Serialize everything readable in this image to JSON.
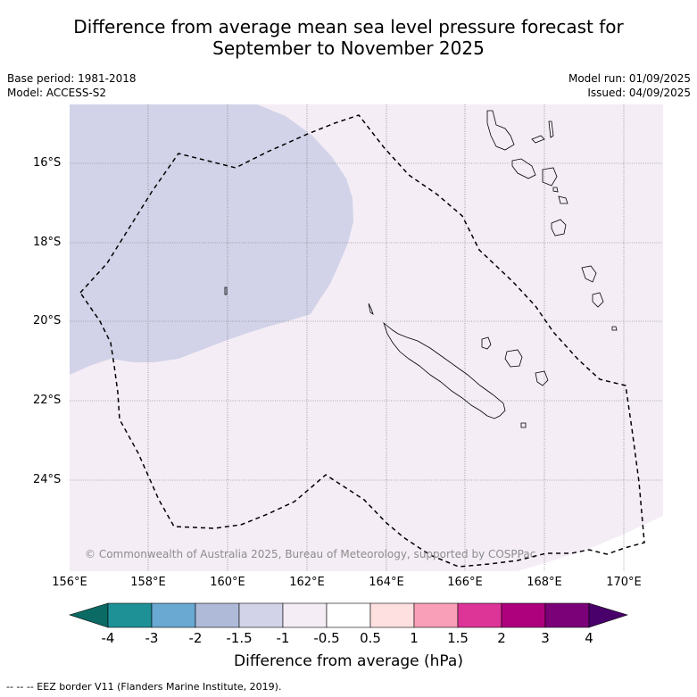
{
  "title_line1": "Difference from average mean sea level pressure forecast for",
  "title_line2": "September to November 2025",
  "meta": {
    "base_period": "Base period: 1981-2018",
    "model": "Model: ACCESS-S2",
    "model_run": "Model run: 01/09/2025",
    "issued": "Issued: 04/09/2025"
  },
  "lat_labels": [
    "16°S",
    "18°S",
    "20°S",
    "22°S",
    "24°S"
  ],
  "lon_labels": [
    "156°E",
    "158°E",
    "160°E",
    "162°E",
    "164°E",
    "166°E",
    "168°E",
    "170°E"
  ],
  "copyright": "© Commonwealth of Australia 2025, Bureau of Meteorology, supported by COSPPac",
  "colorbar": {
    "ticks": [
      "-4",
      "-3",
      "-2",
      "-1.5",
      "-1",
      "-0.5",
      "0.5",
      "1",
      "1.5",
      "2",
      "3",
      "4"
    ],
    "colors": {
      "below_-4": "#0b6b64",
      "-4_-3": "#1e9197",
      "-3_-2": "#69a9d2",
      "-2_-1.5": "#afbad8",
      "-1.5_-1": "#d2d3e8",
      "-1_-0.5": "#f4edf6",
      "-0.5_0.5": "#ffffff",
      "0.5_1": "#fde0df",
      "1_1.5": "#f99fb7",
      "1.5_2": "#dd3497",
      "2_3": "#ae017e",
      "3_4": "#7a0177",
      "above_4": "#49006a"
    },
    "label": "Difference from average (hPa)"
  },
  "eez_note": "--  --  -- EEZ border V11 (Flanders Marine Institute, 2019).",
  "map_fields": [
    {
      "range": "-1.5 to -1 hPa",
      "color": "#d2d3e8",
      "region": "western part of map"
    },
    {
      "range": "-1 to -0.5 hPa",
      "color": "#f4edf6",
      "region": "central and eastern part of map"
    },
    {
      "range": "-0.5 to 0.5 hPa",
      "color": "#ffffff",
      "region": "south-east corner"
    }
  ]
}
